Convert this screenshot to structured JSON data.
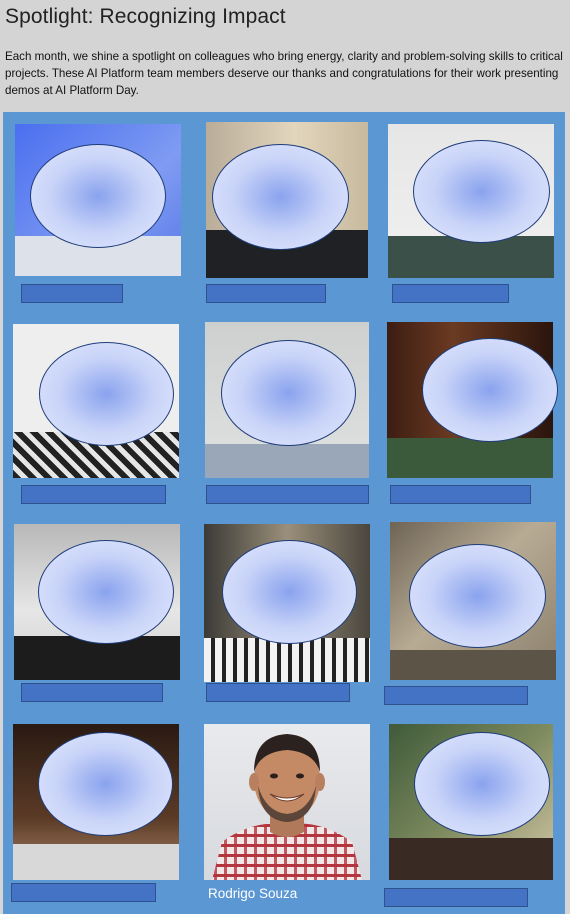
{
  "header": {
    "title": "Spotlight: Recognizing Impact",
    "intro": "Each month, we shine a spotlight on colleagues who bring energy, clarity and problem-solving skills to critical projects. These AI Platform team members deserve our thanks and congratulations for their work presenting demos at AI Platform Day."
  },
  "profiles": [
    {
      "name": "",
      "redacted": true
    },
    {
      "name": "",
      "redacted": true
    },
    {
      "name": "",
      "redacted": true
    },
    {
      "name": "",
      "redacted": true
    },
    {
      "name": "",
      "redacted": true
    },
    {
      "name": "",
      "redacted": true
    },
    {
      "name": "",
      "redacted": true
    },
    {
      "name": "",
      "redacted": true
    },
    {
      "name": "",
      "redacted": true
    },
    {
      "name": "",
      "redacted": true
    },
    {
      "name": "Rodrigo Souza",
      "redacted": false
    },
    {
      "name": "",
      "redacted": true
    }
  ],
  "colors": {
    "board": "#5b97d3",
    "namebar": "#4472c4",
    "oval_border": "#1e3d7a"
  }
}
